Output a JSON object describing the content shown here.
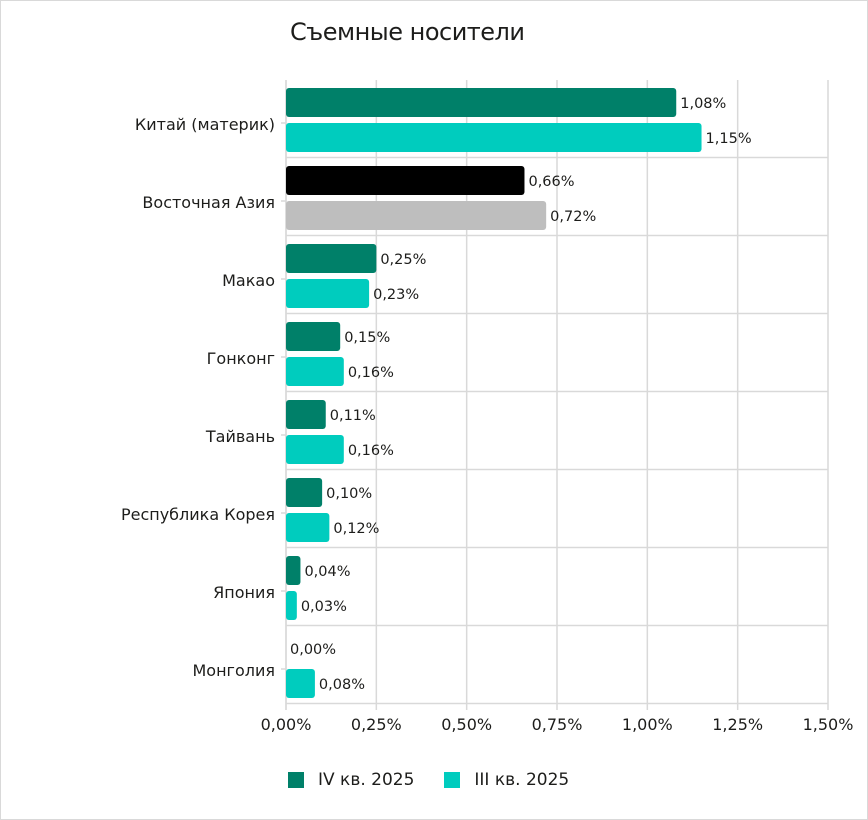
{
  "chart_data": {
    "type": "bar",
    "orientation": "horizontal",
    "title": "Съемные носители",
    "categories": [
      "Китай (материк)",
      "Восточная Азия",
      "Макао",
      "Гонконг",
      "Тайвань",
      "Республика Корея",
      "Япония",
      "Монголия"
    ],
    "series": [
      {
        "name": "IV кв. 2025",
        "color": "#008069",
        "values": [
          1.08,
          0.66,
          0.25,
          0.15,
          0.11,
          0.1,
          0.04,
          0.0
        ],
        "labels": [
          "1,08%",
          "0,66%",
          "0,25%",
          "0,15%",
          "0,11%",
          "0,10%",
          "0,04%",
          "0,00%"
        ]
      },
      {
        "name": "III кв. 2025",
        "color": "#00CCBE",
        "values": [
          1.15,
          0.72,
          0.23,
          0.16,
          0.16,
          0.12,
          0.03,
          0.08
        ],
        "labels": [
          "1,15%",
          "0,72%",
          "0,23%",
          "0,16%",
          "0,16%",
          "0,12%",
          "0,03%",
          "0,08%"
        ]
      }
    ],
    "highlight": {
      "category_index": 1,
      "colors": [
        "#000000",
        "#BEBEBE"
      ]
    },
    "xlim": [
      0,
      1.5
    ],
    "xticks": [
      0,
      0.25,
      0.5,
      0.75,
      1.0,
      1.25,
      1.5
    ],
    "xtick_labels": [
      "0,00%",
      "0,25%",
      "0,50%",
      "0,75%",
      "1,00%",
      "1,25%",
      "1,50%"
    ],
    "grid": true,
    "legend_position": "bottom"
  }
}
